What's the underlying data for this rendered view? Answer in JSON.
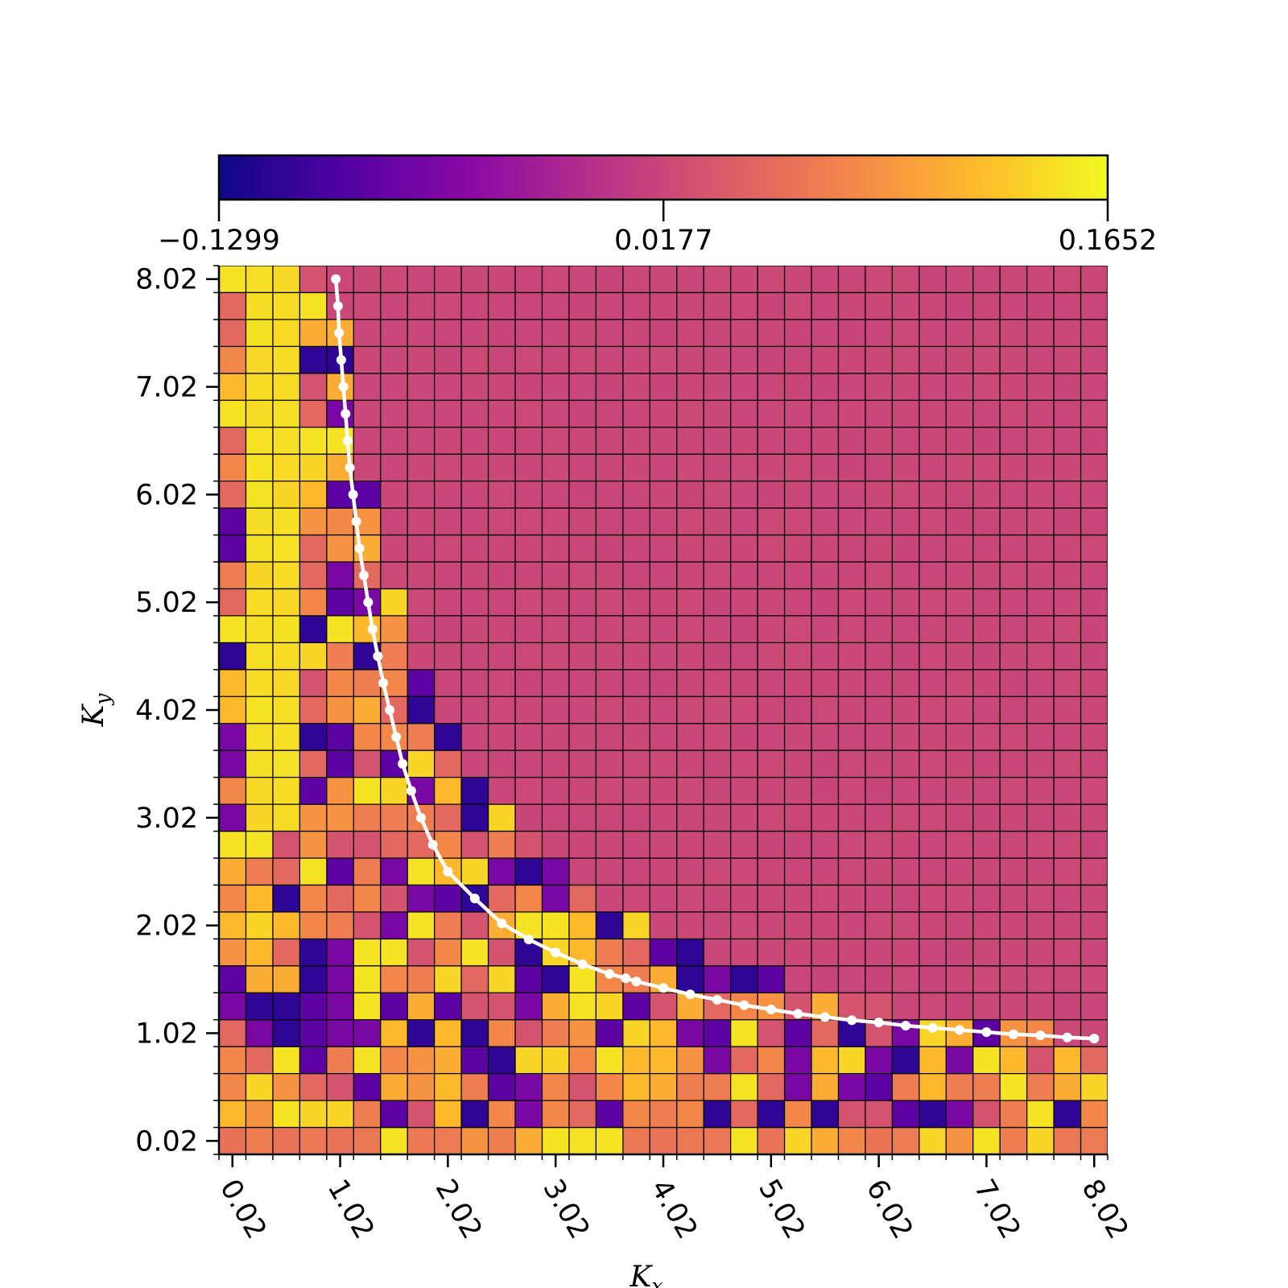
{
  "chart_data": {
    "type": "heatmap",
    "title": "",
    "colormap": "plasma",
    "colormap_stops": [
      "#0d0887",
      "#5302a3",
      "#8b0aa5",
      "#b83289",
      "#db5c68",
      "#f48849",
      "#febc2a",
      "#f0f921"
    ],
    "grid": true,
    "grid_color": "#000000",
    "xlabel": "K",
    "xlabel_sub": "x",
    "ylabel": "K",
    "ylabel_sub": "y",
    "xlim": [
      -0.105,
      8.145
    ],
    "ylim": [
      -0.105,
      8.145
    ],
    "cell_size": 0.25,
    "x_ticks": [
      0.02,
      1.02,
      2.02,
      3.02,
      4.02,
      5.02,
      6.02,
      7.02,
      8.02
    ],
    "x_tick_labels": [
      "0.02",
      "1.02",
      "2.02",
      "3.02",
      "4.02",
      "5.02",
      "6.02",
      "7.02",
      "8.02"
    ],
    "y_ticks": [
      0.02,
      1.02,
      2.02,
      3.02,
      4.02,
      5.02,
      6.02,
      7.02,
      8.02
    ],
    "y_tick_labels": [
      "0.02",
      "1.02",
      "2.02",
      "3.02",
      "4.02",
      "5.02",
      "6.02",
      "7.02",
      "8.02"
    ],
    "x_tick_rotation": -60,
    "colorbar": {
      "orientation": "horizontal",
      "placement": "top",
      "min": -0.1299,
      "max": 0.1652,
      "ticks": [
        -0.1299,
        0.0177,
        0.1652
      ],
      "tick_labels": [
        "−0.1299",
        "0.0177",
        "0.1652"
      ]
    },
    "heatmap_description": "Values near 0.0177 in the upper-right region beyond the curve; noisy values spanning the full range in the lower-left band and along the bottom row; a column of high values (~0.14) at Kx ~0.27-0.52 for Ky above 3.",
    "curve": {
      "color": "#ffffff",
      "marker": "circle",
      "points": [
        [
          0.98,
          8.02
        ],
        [
          1.0,
          7.77
        ],
        [
          1.01,
          7.52
        ],
        [
          1.03,
          7.27
        ],
        [
          1.05,
          7.02
        ],
        [
          1.07,
          6.77
        ],
        [
          1.09,
          6.52
        ],
        [
          1.11,
          6.27
        ],
        [
          1.14,
          6.02
        ],
        [
          1.17,
          5.77
        ],
        [
          1.2,
          5.52
        ],
        [
          1.24,
          5.27
        ],
        [
          1.28,
          5.02
        ],
        [
          1.32,
          4.77
        ],
        [
          1.37,
          4.52
        ],
        [
          1.42,
          4.27
        ],
        [
          1.48,
          4.02
        ],
        [
          1.54,
          3.77
        ],
        [
          1.6,
          3.52
        ],
        [
          1.68,
          3.27
        ],
        [
          1.77,
          3.02
        ],
        [
          1.88,
          2.77
        ],
        [
          2.02,
          2.52
        ],
        [
          2.27,
          2.27
        ],
        [
          2.52,
          2.04
        ],
        [
          2.77,
          1.89
        ],
        [
          3.02,
          1.77
        ],
        [
          3.27,
          1.66
        ],
        [
          3.52,
          1.57
        ],
        [
          3.67,
          1.53
        ],
        [
          3.77,
          1.5
        ],
        [
          4.02,
          1.44
        ],
        [
          4.27,
          1.38
        ],
        [
          4.52,
          1.33
        ],
        [
          4.77,
          1.28
        ],
        [
          5.02,
          1.24
        ],
        [
          5.27,
          1.2
        ],
        [
          5.52,
          1.17
        ],
        [
          5.77,
          1.14
        ],
        [
          6.02,
          1.12
        ],
        [
          6.27,
          1.09
        ],
        [
          6.52,
          1.07
        ],
        [
          6.77,
          1.05
        ],
        [
          7.02,
          1.03
        ],
        [
          7.27,
          1.01
        ],
        [
          7.52,
          1.0
        ],
        [
          7.77,
          0.98
        ],
        [
          8.02,
          0.97
        ]
      ]
    }
  }
}
